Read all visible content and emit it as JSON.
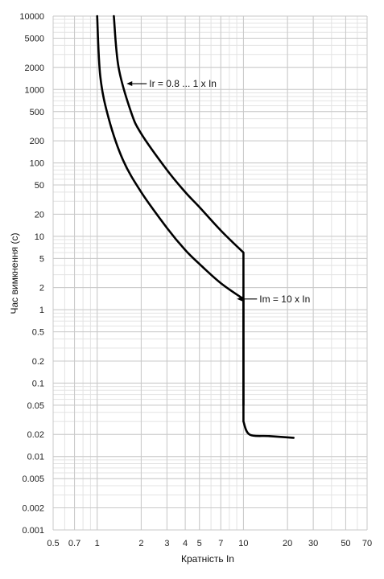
{
  "chart_data": {
    "type": "line",
    "title": "",
    "xlabel": "Кратність In",
    "ylabel": "Час вимкнення (с)",
    "x_scale": "log",
    "y_scale": "log",
    "xlim": [
      0.5,
      70
    ],
    "ylim": [
      0.001,
      10000
    ],
    "grid": true,
    "x_ticks": [
      0.5,
      0.7,
      1,
      2,
      3,
      4,
      5,
      7,
      10,
      20,
      30,
      50,
      70
    ],
    "x_tick_labels": [
      "0.5",
      "0.7",
      "1",
      "2",
      "3",
      "4",
      "5",
      "7",
      "10",
      "20",
      "30",
      "50",
      "70"
    ],
    "y_ticks": [
      0.001,
      0.002,
      0.005,
      0.01,
      0.02,
      0.05,
      0.1,
      0.2,
      0.5,
      1,
      2,
      5,
      10,
      20,
      50,
      100,
      200,
      500,
      1000,
      2000,
      5000,
      10000
    ],
    "y_tick_labels": [
      "0.001",
      "0.002",
      "0.005",
      "0.01",
      "0.02",
      "0.05",
      "0.1",
      "0.2",
      "0.5",
      "1",
      "2",
      "5",
      "10",
      "20",
      "50",
      "100",
      "200",
      "500",
      "1000",
      "2000",
      "5000",
      "10000"
    ],
    "series": [
      {
        "values": [
          [
            1.0,
            10000
          ],
          [
            1.05,
            1500
          ],
          [
            1.2,
            400
          ],
          [
            1.5,
            110
          ],
          [
            2,
            40
          ],
          [
            3,
            13
          ],
          [
            4,
            6.5
          ],
          [
            5,
            4.2
          ],
          [
            7,
            2.3
          ],
          [
            10,
            1.4
          ],
          [
            10,
            0.03
          ],
          [
            11,
            0.02
          ],
          [
            15,
            0.019
          ],
          [
            22,
            0.018
          ]
        ]
      },
      {
        "values": [
          [
            1.3,
            10000
          ],
          [
            1.4,
            2000
          ],
          [
            1.7,
            500
          ],
          [
            2,
            250
          ],
          [
            3,
            80
          ],
          [
            4,
            40
          ],
          [
            5,
            25
          ],
          [
            7,
            12
          ],
          [
            10,
            6
          ],
          [
            10,
            0.05
          ]
        ]
      }
    ],
    "annotations": [
      {
        "text": "Ir = 0.8 ... 1 x In",
        "x": 1.85,
        "y": 1200
      },
      {
        "text": "Im = 10 x In",
        "x": 10.5,
        "y": 1.4
      }
    ]
  }
}
